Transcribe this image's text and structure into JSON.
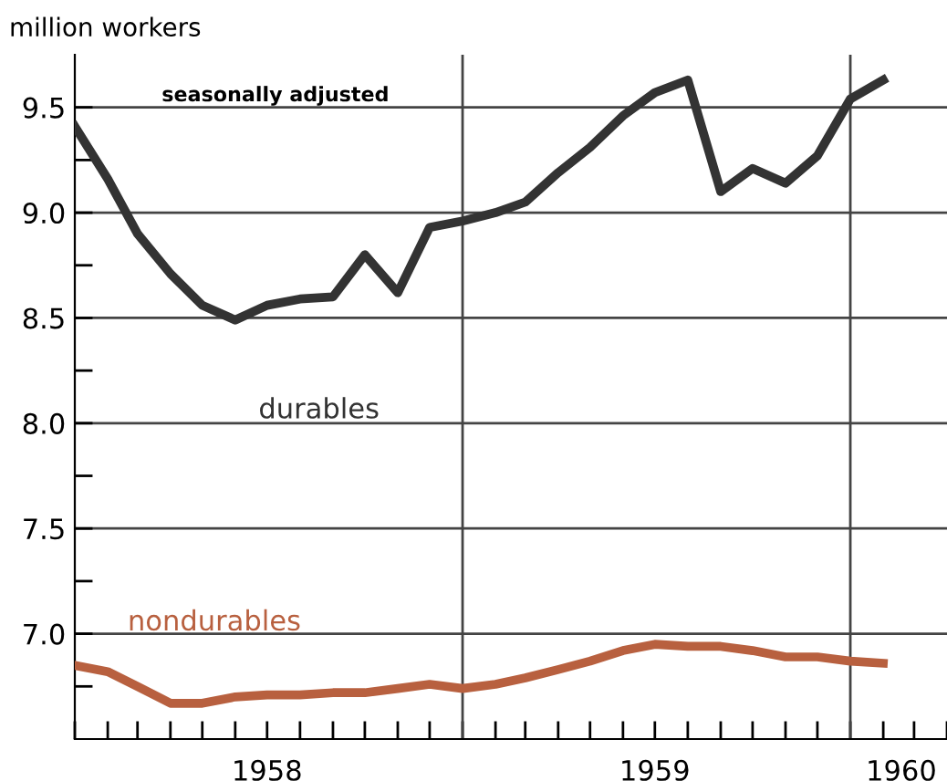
{
  "chart_data": {
    "type": "line",
    "ylabel": "million workers",
    "annotations": [
      "seasonally adjusted"
    ],
    "x": [
      "1958-01",
      "1958-02",
      "1958-03",
      "1958-04",
      "1958-05",
      "1958-06",
      "1958-07",
      "1958-08",
      "1958-09",
      "1958-10",
      "1958-11",
      "1958-12",
      "1959-01",
      "1959-02",
      "1959-03",
      "1959-04",
      "1959-05",
      "1959-06",
      "1959-07",
      "1959-08",
      "1959-09",
      "1959-10",
      "1959-11",
      "1959-12",
      "1960-01",
      "1960-02"
    ],
    "series": [
      {
        "name": "durables",
        "color": "#333333",
        "values": [
          9.41,
          9.16,
          8.9,
          8.71,
          8.56,
          8.49,
          8.56,
          8.59,
          8.6,
          8.8,
          8.62,
          8.93,
          8.96,
          9.0,
          9.05,
          9.19,
          9.31,
          9.46,
          9.57,
          9.63,
          9.1,
          9.21,
          9.14,
          9.27,
          9.54,
          9.63
        ]
      },
      {
        "name": "nondurables",
        "color": "#b8603f",
        "values": [
          6.85,
          6.82,
          6.75,
          6.67,
          6.67,
          6.7,
          6.71,
          6.71,
          6.72,
          6.72,
          6.74,
          6.76,
          6.74,
          6.76,
          6.79,
          6.83,
          6.87,
          6.92,
          6.95,
          6.94,
          6.94,
          6.92,
          6.89,
          6.89,
          6.87,
          6.86
        ]
      }
    ],
    "xlim": [
      "1958-01",
      "1960-04"
    ],
    "xticks": [
      {
        "value": "1958-01",
        "label": null
      },
      {
        "value": "1958-02",
        "label": null
      },
      {
        "value": "1958-03",
        "label": null
      },
      {
        "value": "1958-04",
        "label": null
      },
      {
        "value": "1958-05",
        "label": null
      },
      {
        "value": "1958-06",
        "label": null
      },
      {
        "value": "1958-07",
        "label": null
      },
      {
        "value": "1958-08",
        "label": null
      },
      {
        "value": "1958-09",
        "label": null
      },
      {
        "value": "1958-10",
        "label": null
      },
      {
        "value": "1958-11",
        "label": null
      },
      {
        "value": "1958-12",
        "label": null
      },
      {
        "value": "1959-01",
        "label": null
      },
      {
        "value": "1959-02",
        "label": null
      },
      {
        "value": "1959-03",
        "label": null
      },
      {
        "value": "1959-04",
        "label": null
      },
      {
        "value": "1959-05",
        "label": null
      },
      {
        "value": "1959-06",
        "label": null
      },
      {
        "value": "1959-07",
        "label": null
      },
      {
        "value": "1959-08",
        "label": null
      },
      {
        "value": "1959-09",
        "label": null
      },
      {
        "value": "1959-10",
        "label": null
      },
      {
        "value": "1959-11",
        "label": null
      },
      {
        "value": "1959-12",
        "label": null
      },
      {
        "value": "1960-01",
        "label": null
      },
      {
        "value": "1960-02",
        "label": null
      },
      {
        "value": "1960-03",
        "label": null
      },
      {
        "value": "1960-04",
        "label": null
      },
      {
        "value": "1958-07",
        "label": "1958"
      },
      {
        "value": "1959-07",
        "label": "1959"
      },
      {
        "value": "1960-02-18",
        "label": "1960"
      }
    ],
    "ylim": [
      6.5,
      9.75
    ],
    "yticks": [
      {
        "value": 6.75,
        "label": null
      },
      {
        "value": 7,
        "label": "7.0"
      },
      {
        "value": 7.25,
        "label": null
      },
      {
        "value": 7.5,
        "label": "7.5"
      },
      {
        "value": 7.75,
        "label": null
      },
      {
        "value": 8,
        "label": "8.0"
      },
      {
        "value": 8.25,
        "label": null
      },
      {
        "value": 8.5,
        "label": "8.5"
      },
      {
        "value": 8.75,
        "label": null
      },
      {
        "value": 9,
        "label": "9.0"
      },
      {
        "value": 9.25,
        "label": null
      },
      {
        "value": 9.5,
        "label": "9.5"
      }
    ],
    "ref_lines": [
      {
        "axis": "x",
        "value": "1959-01",
        "color": "#444444"
      },
      {
        "axis": "x",
        "value": "1960-01",
        "color": "#444444"
      }
    ],
    "grid": "y",
    "line_style": "solid"
  }
}
